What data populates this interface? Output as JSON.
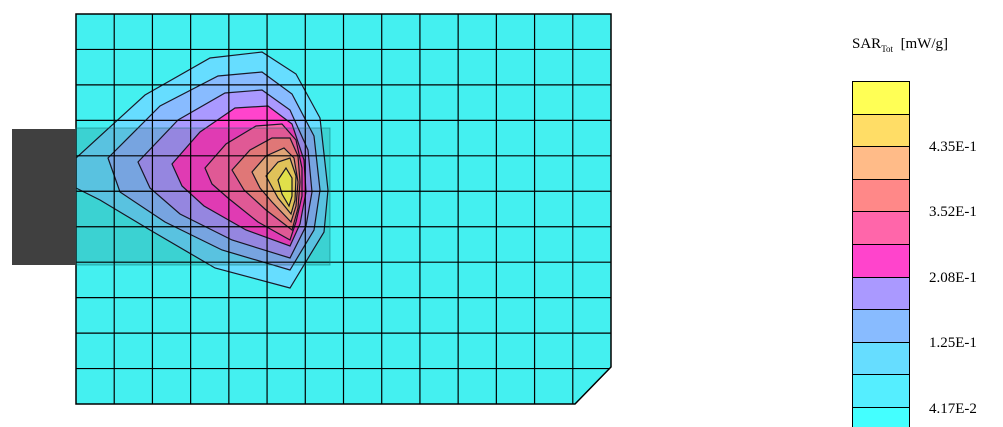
{
  "legend": {
    "title_main": "SAR",
    "title_sub": "Tot",
    "title_unit": "[mW/g]",
    "colors": [
      "#ffff55",
      "#ffdd66",
      "#ffbb88",
      "#ff8888",
      "#ff66aa",
      "#ff44cc",
      "#aa99ff",
      "#88bbff",
      "#66ddff",
      "#55eeff",
      "#44ffff"
    ],
    "tick_labels": [
      "4.35E-1",
      "3.52E-1",
      "2.08E-1",
      "1.25E-1",
      "4.17E-2"
    ]
  },
  "grid": {
    "columns": 14,
    "rows": 11,
    "cell_color": "#44f0f0",
    "line_color": "#000000"
  },
  "source_block_color": "#404040"
}
